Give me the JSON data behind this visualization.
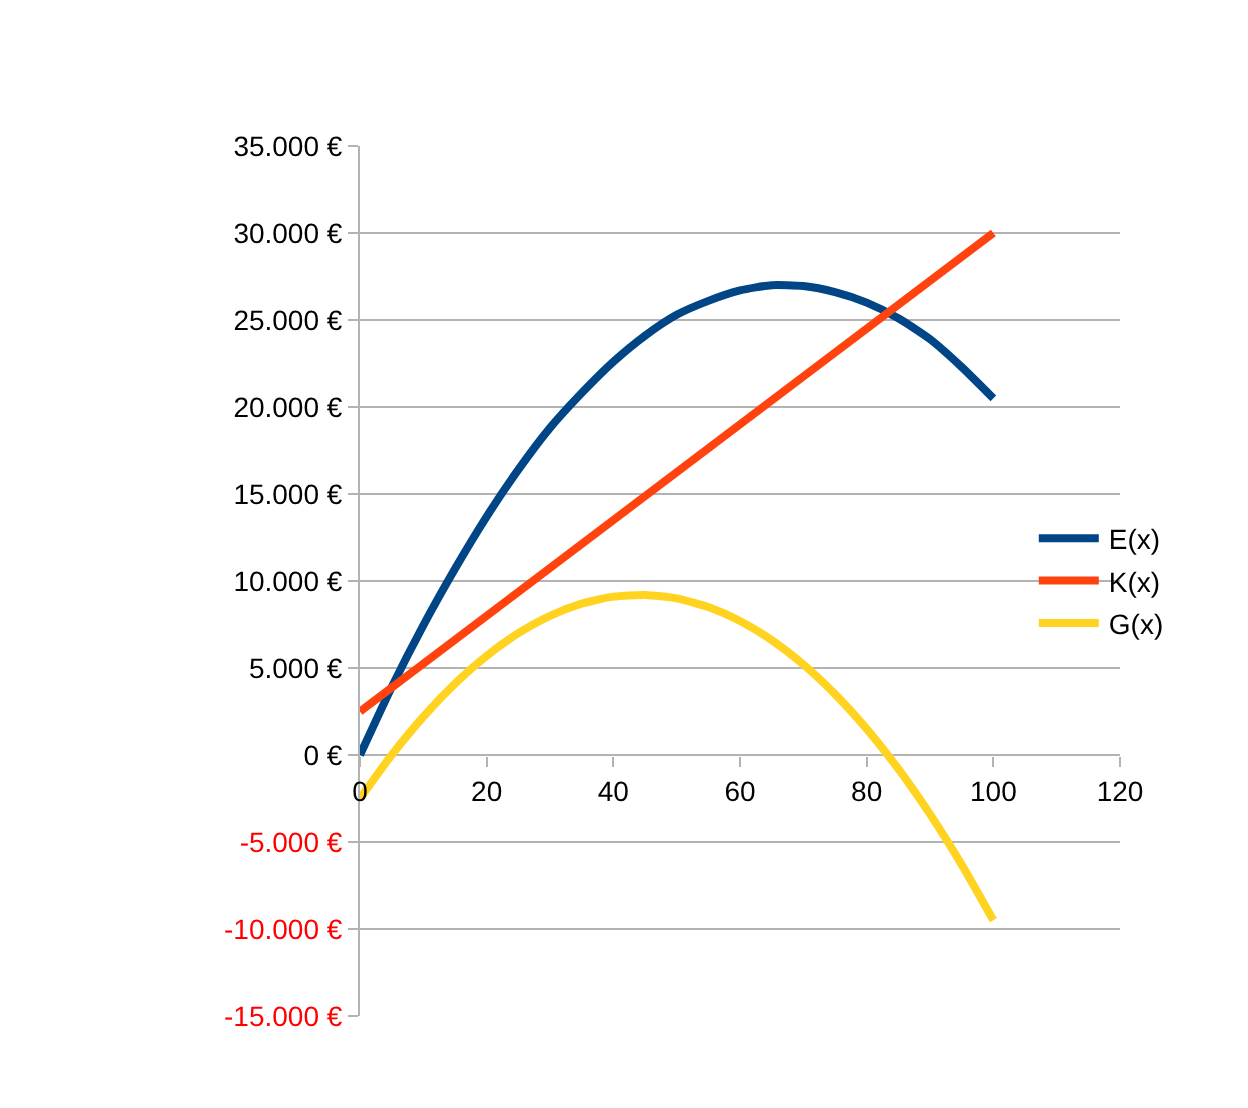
{
  "chart_data": {
    "type": "line",
    "x": [
      0,
      5,
      10,
      15,
      20,
      25,
      30,
      35,
      40,
      45,
      50,
      55,
      60,
      65,
      70,
      75,
      80,
      85,
      90,
      95,
      100
    ],
    "series": [
      {
        "name": "E(x)",
        "color": "#004586",
        "values": [
          0,
          3900,
          7450,
          10700,
          13700,
          16400,
          18800,
          20800,
          22600,
          24100,
          25300,
          26100,
          26700,
          27000,
          26950,
          26600,
          26000,
          25100,
          23900,
          22300,
          20500
        ]
      },
      {
        "name": "K(x)",
        "color": "#ff420e",
        "x": [
          0,
          100
        ],
        "values": [
          2500,
          30000
        ]
      },
      {
        "name": "G(x)",
        "color": "#ffd320",
        "values": [
          -2500,
          0,
          2200,
          4100,
          5700,
          7000,
          8000,
          8700,
          9100,
          9200,
          9000,
          8500,
          7700,
          6600,
          5200,
          3500,
          1500,
          -800,
          -3400,
          -6300,
          -9500
        ]
      }
    ],
    "xlim": [
      0,
      120
    ],
    "xticks": [
      0,
      20,
      40,
      60,
      80,
      100,
      120
    ],
    "ylim": [
      -15000,
      35000
    ],
    "yticks": [
      {
        "value": -15000,
        "label": "-15.000 €"
      },
      {
        "value": -10000,
        "label": "-10.000 €"
      },
      {
        "value": -5000,
        "label": "-5.000 €"
      },
      {
        "value": 0,
        "label": "0 €"
      },
      {
        "value": 5000,
        "label": "5.000 €"
      },
      {
        "value": 10000,
        "label": "10.000 €"
      },
      {
        "value": 15000,
        "label": "15.000 €"
      },
      {
        "value": 20000,
        "label": "20.000 €"
      },
      {
        "value": 25000,
        "label": "25.000 €"
      },
      {
        "value": 30000,
        "label": "30.000 €"
      },
      {
        "value": 35000,
        "label": "35.000 €"
      }
    ],
    "grid": "y",
    "legend": "right",
    "marker": "none",
    "line_style": "solid"
  }
}
